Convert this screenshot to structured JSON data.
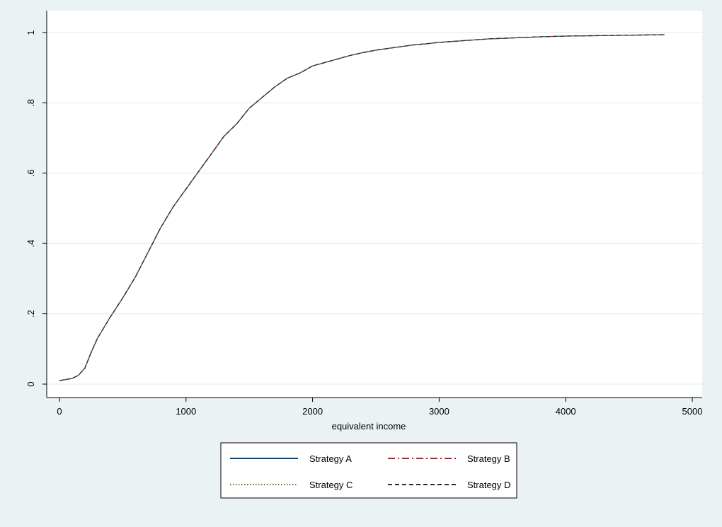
{
  "chart_data": {
    "type": "line",
    "title": "",
    "xlabel": "equivalent income",
    "ylabel": "",
    "xlim": [
      0,
      5000
    ],
    "ylim": [
      0,
      1
    ],
    "x_ticks": [
      0,
      1000,
      2000,
      3000,
      4000,
      5000
    ],
    "y_ticks": [
      0,
      0.2,
      0.4,
      0.6,
      0.8,
      1
    ],
    "x_tick_labels": [
      "0",
      "1000",
      "2000",
      "3000",
      "4000",
      "5000"
    ],
    "y_tick_labels": [
      "0",
      ".2",
      ".4",
      ".6",
      ".8",
      "1"
    ],
    "grid": {
      "horizontal": true,
      "vertical": false
    },
    "legend_position": "bottom",
    "x": [
      0,
      50,
      100,
      150,
      200,
      250,
      300,
      400,
      500,
      600,
      700,
      800,
      900,
      1000,
      1100,
      1200,
      1300,
      1400,
      1500,
      1600,
      1700,
      1800,
      1900,
      2000,
      2100,
      2200,
      2300,
      2400,
      2500,
      2600,
      2700,
      2800,
      2900,
      3000,
      3200,
      3400,
      3600,
      3800,
      4000,
      4200,
      4400,
      4600,
      4780
    ],
    "series": [
      {
        "name": "Strategy A",
        "color": "#1a476f",
        "dash": "solid",
        "values": [
          0.01,
          0.013,
          0.016,
          0.025,
          0.045,
          0.09,
          0.13,
          0.19,
          0.245,
          0.305,
          0.375,
          0.445,
          0.505,
          0.555,
          0.605,
          0.655,
          0.705,
          0.74,
          0.785,
          0.815,
          0.845,
          0.87,
          0.885,
          0.905,
          0.915,
          0.925,
          0.935,
          0.943,
          0.95,
          0.955,
          0.96,
          0.965,
          0.968,
          0.972,
          0.977,
          0.982,
          0.985,
          0.988,
          0.99,
          0.991,
          0.992,
          0.993,
          0.994
        ]
      },
      {
        "name": "Strategy B",
        "color": "#90353b",
        "dash": "dashdot",
        "values": [
          0.01,
          0.013,
          0.016,
          0.025,
          0.045,
          0.09,
          0.13,
          0.19,
          0.245,
          0.305,
          0.375,
          0.445,
          0.505,
          0.555,
          0.605,
          0.655,
          0.705,
          0.74,
          0.785,
          0.815,
          0.845,
          0.87,
          0.885,
          0.905,
          0.915,
          0.925,
          0.935,
          0.943,
          0.95,
          0.955,
          0.96,
          0.965,
          0.968,
          0.972,
          0.977,
          0.982,
          0.985,
          0.988,
          0.99,
          0.991,
          0.992,
          0.993,
          0.994
        ]
      },
      {
        "name": "Strategy C",
        "color": "#55752f",
        "dash": "dotted",
        "values": [
          0.01,
          0.013,
          0.016,
          0.025,
          0.045,
          0.09,
          0.13,
          0.19,
          0.245,
          0.305,
          0.375,
          0.445,
          0.505,
          0.555,
          0.605,
          0.655,
          0.705,
          0.74,
          0.785,
          0.815,
          0.845,
          0.87,
          0.885,
          0.905,
          0.915,
          0.925,
          0.935,
          0.943,
          0.95,
          0.955,
          0.96,
          0.965,
          0.968,
          0.972,
          0.977,
          0.982,
          0.985,
          0.988,
          0.99,
          0.991,
          0.992,
          0.993,
          0.994
        ]
      },
      {
        "name": "Strategy D",
        "color": "#2b2b2b",
        "dash": "dashed",
        "values": [
          0.01,
          0.013,
          0.016,
          0.025,
          0.045,
          0.09,
          0.13,
          0.19,
          0.245,
          0.305,
          0.375,
          0.445,
          0.505,
          0.555,
          0.605,
          0.655,
          0.705,
          0.74,
          0.785,
          0.815,
          0.845,
          0.87,
          0.885,
          0.905,
          0.915,
          0.925,
          0.935,
          0.943,
          0.95,
          0.955,
          0.96,
          0.965,
          0.968,
          0.972,
          0.977,
          0.982,
          0.985,
          0.988,
          0.99,
          0.991,
          0.992,
          0.993,
          0.994
        ]
      }
    ]
  }
}
